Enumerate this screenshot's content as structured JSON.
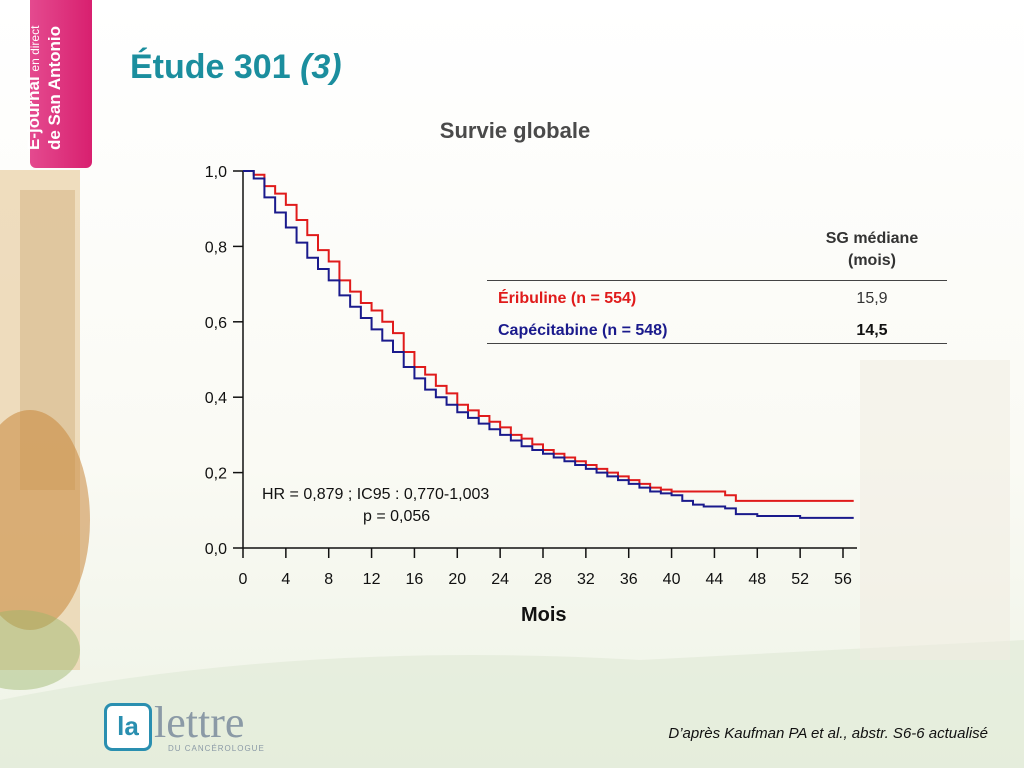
{
  "branding": {
    "tab_line1": "E-journal",
    "tab_line1_small": "en direct",
    "tab_line2": "de San Antonio",
    "logo_la": "la",
    "logo_word": "lettre",
    "logo_sub": "DU CANCÉROLOGUE"
  },
  "slide": {
    "title_main": "Étude 301 ",
    "title_em": "(3)",
    "stats_line1": "HR = 0,879 ; IC95 : 0,770-1,003",
    "stats_line2": "p = 0,056",
    "source": "D’après Kaufman PA et al., abstr. S6-6 actualisé"
  },
  "table": {
    "header": "SG médiane (mois)",
    "rows": [
      {
        "label": "Éribuline (n = 554)",
        "value": "15,9",
        "color": "#e01b1b"
      },
      {
        "label": "Capécitabine (n = 548)",
        "value": "14,5",
        "color": "#1a1a8c"
      }
    ]
  },
  "chart_data": {
    "type": "line",
    "title": "Survie globale",
    "xlabel": "Mois",
    "ylabel": "",
    "xlim": [
      0,
      57
    ],
    "ylim": [
      0,
      1
    ],
    "xticks": [
      0,
      4,
      8,
      12,
      16,
      20,
      24,
      28,
      32,
      36,
      40,
      44,
      48,
      52,
      56
    ],
    "xtick_labels": [
      "0",
      "4",
      "8",
      "12",
      "16",
      "20",
      "24",
      "28",
      "32",
      "36",
      "40",
      "44",
      "48",
      "52",
      "56"
    ],
    "yticks": [
      0,
      0.2,
      0.4,
      0.6,
      0.8,
      1.0
    ],
    "ytick_labels": [
      "0,0",
      "0,2",
      "0,4",
      "0,6",
      "0,8",
      "1,0"
    ],
    "grid": false,
    "series": [
      {
        "name": "Éribuline (n = 554)",
        "color": "#e01b1b",
        "x": [
          0,
          1,
          2,
          3,
          4,
          5,
          6,
          7,
          8,
          9,
          10,
          11,
          12,
          13,
          14,
          15,
          16,
          17,
          18,
          19,
          20,
          21,
          22,
          23,
          24,
          25,
          26,
          27,
          28,
          29,
          30,
          31,
          32,
          33,
          34,
          35,
          36,
          37,
          38,
          39,
          40,
          41,
          42,
          43,
          44,
          45,
          46,
          48,
          50,
          52,
          54,
          57
        ],
        "y": [
          1.0,
          0.99,
          0.96,
          0.94,
          0.91,
          0.87,
          0.83,
          0.79,
          0.76,
          0.71,
          0.68,
          0.65,
          0.63,
          0.6,
          0.57,
          0.52,
          0.48,
          0.46,
          0.43,
          0.41,
          0.38,
          0.365,
          0.35,
          0.335,
          0.32,
          0.3,
          0.29,
          0.275,
          0.26,
          0.25,
          0.24,
          0.23,
          0.22,
          0.21,
          0.2,
          0.19,
          0.18,
          0.17,
          0.16,
          0.155,
          0.15,
          0.15,
          0.15,
          0.15,
          0.15,
          0.14,
          0.125,
          0.125,
          0.125,
          0.125,
          0.125,
          0.125
        ]
      },
      {
        "name": "Capécitabine (n = 548)",
        "color": "#1a1a8c",
        "x": [
          0,
          1,
          2,
          3,
          4,
          5,
          6,
          7,
          8,
          9,
          10,
          11,
          12,
          13,
          14,
          15,
          16,
          17,
          18,
          19,
          20,
          21,
          22,
          23,
          24,
          25,
          26,
          27,
          28,
          29,
          30,
          31,
          32,
          33,
          34,
          35,
          36,
          37,
          38,
          39,
          40,
          41,
          42,
          43,
          44,
          45,
          46,
          48,
          50,
          52,
          54,
          57
        ],
        "y": [
          1.0,
          0.98,
          0.93,
          0.89,
          0.85,
          0.81,
          0.77,
          0.74,
          0.71,
          0.67,
          0.64,
          0.61,
          0.58,
          0.55,
          0.52,
          0.48,
          0.45,
          0.42,
          0.4,
          0.38,
          0.36,
          0.345,
          0.33,
          0.315,
          0.3,
          0.285,
          0.27,
          0.26,
          0.25,
          0.24,
          0.23,
          0.22,
          0.21,
          0.2,
          0.19,
          0.18,
          0.17,
          0.16,
          0.15,
          0.145,
          0.14,
          0.125,
          0.115,
          0.11,
          0.11,
          0.105,
          0.09,
          0.085,
          0.085,
          0.08,
          0.08,
          0.08
        ]
      }
    ]
  }
}
